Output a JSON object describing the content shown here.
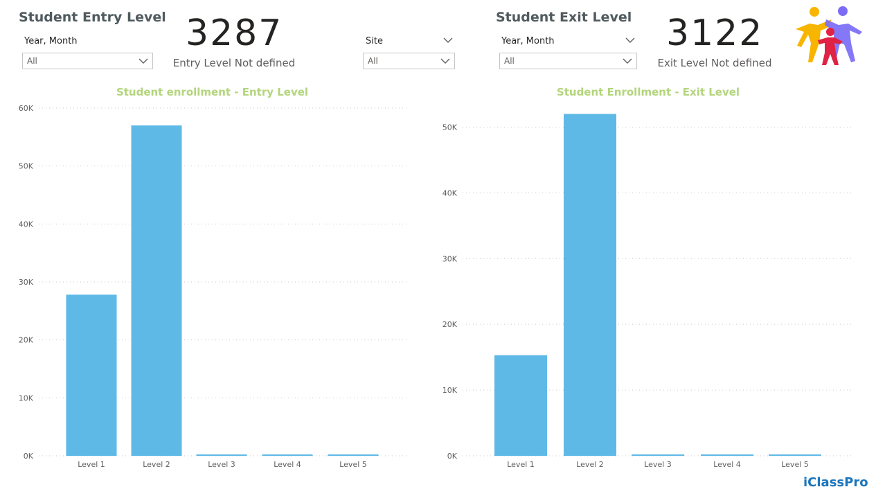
{
  "entry": {
    "title": "Student Entry Level",
    "slicer_label": "Year, Month",
    "slicer_value": "All",
    "kpi_value": "3287",
    "kpi_label": "Entry Level Not defined"
  },
  "site": {
    "label": "Site",
    "value": "All"
  },
  "exit": {
    "title": "Student Exit Level",
    "slicer_label": "Year, Month",
    "slicer_value": "All",
    "kpi_value": "3122",
    "kpi_label": "Exit Level Not defined"
  },
  "logo": {
    "name": "people-logo-icon",
    "colors": [
      "#f7b500",
      "#e02244",
      "#7b6cf6",
      "#3bb0ff"
    ]
  },
  "brand": {
    "text": "iClassPro"
  },
  "chart_data": [
    {
      "type": "bar",
      "title": "Student enrollment - Entry Level",
      "categories": [
        "Level 1",
        "Level 2",
        "Level 3",
        "Level 4",
        "Level 5"
      ],
      "values": [
        27800,
        57000,
        100,
        100,
        100
      ],
      "ylim": [
        0,
        60000
      ],
      "yticks": [
        0,
        10000,
        20000,
        30000,
        40000,
        50000,
        60000
      ],
      "ytick_labels": [
        "0K",
        "10K",
        "20K",
        "30K",
        "40K",
        "50K",
        "60K"
      ],
      "grid": true,
      "color": "#5eb9e6"
    },
    {
      "type": "bar",
      "title": "Student Enrollment - Exit Level",
      "categories": [
        "Level 1",
        "Level 2",
        "Level 3",
        "Level 4",
        "Level 5"
      ],
      "values": [
        15300,
        52000,
        100,
        200,
        100
      ],
      "ylim": [
        0,
        55000
      ],
      "yticks": [
        0,
        10000,
        20000,
        30000,
        40000,
        50000
      ],
      "ytick_labels": [
        "0K",
        "10K",
        "20K",
        "30K",
        "40K",
        "50K"
      ],
      "grid": true,
      "color": "#5eb9e6"
    }
  ]
}
